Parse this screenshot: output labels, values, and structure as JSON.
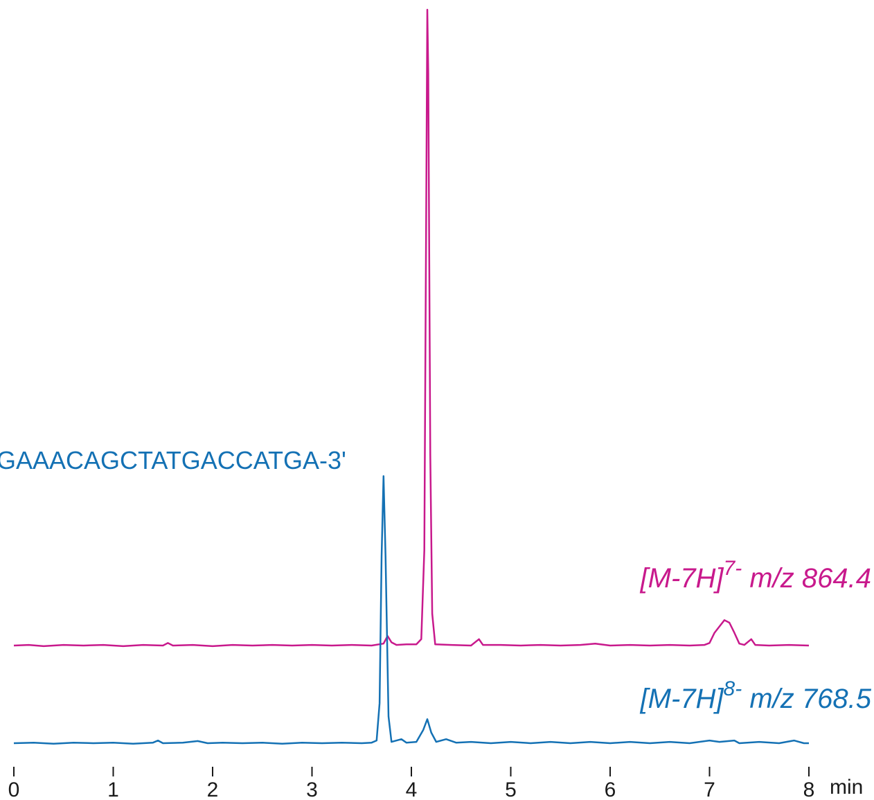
{
  "chart_data": {
    "type": "line",
    "title": "",
    "annotation": "GAAACAGCTATGACCATGA-3'",
    "xlabel": "min",
    "ylabel": "",
    "xlim": [
      0,
      8
    ],
    "x_ticks": [
      "0",
      "1",
      "2",
      "3",
      "4",
      "5",
      "6",
      "7",
      "8"
    ],
    "grid": false,
    "colors": {
      "magenta": "#c8198c",
      "blue": "#1471b4",
      "axis": "#1a1a1a"
    },
    "series": [
      {
        "name": "[M-7H]7- m/z 864.4",
        "label_main": "[M-7H]",
        "label_sup": "7-",
        "label_mz": " m/z 864.4",
        "color": "#c8198c",
        "relative_max": 1.0,
        "points": [
          [
            0.0,
            0.0
          ],
          [
            0.15,
            0.001
          ],
          [
            0.3,
            -0.001
          ],
          [
            0.5,
            0.001
          ],
          [
            0.7,
            0.0
          ],
          [
            0.9,
            0.001
          ],
          [
            1.1,
            -0.001
          ],
          [
            1.3,
            0.001
          ],
          [
            1.5,
            0.0
          ],
          [
            1.55,
            0.004
          ],
          [
            1.6,
            0.0
          ],
          [
            1.8,
            0.001
          ],
          [
            2.0,
            -0.001
          ],
          [
            2.2,
            0.001
          ],
          [
            2.4,
            0.0
          ],
          [
            2.6,
            0.001
          ],
          [
            2.8,
            0.0
          ],
          [
            3.0,
            0.001
          ],
          [
            3.2,
            0.0
          ],
          [
            3.4,
            0.001
          ],
          [
            3.6,
            0.0
          ],
          [
            3.72,
            0.003
          ],
          [
            3.76,
            0.015
          ],
          [
            3.8,
            0.005
          ],
          [
            3.85,
            0.001
          ],
          [
            3.95,
            0.002
          ],
          [
            4.05,
            0.002
          ],
          [
            4.1,
            0.01
          ],
          [
            4.13,
            0.15
          ],
          [
            4.15,
            0.7
          ],
          [
            4.16,
            1.0
          ],
          [
            4.17,
            0.9
          ],
          [
            4.19,
            0.3
          ],
          [
            4.21,
            0.05
          ],
          [
            4.24,
            0.002
          ],
          [
            4.4,
            0.001
          ],
          [
            4.6,
            0.0
          ],
          [
            4.68,
            0.01
          ],
          [
            4.72,
            0.001
          ],
          [
            4.9,
            0.001
          ],
          [
            5.1,
            0.0
          ],
          [
            5.3,
            0.001
          ],
          [
            5.5,
            0.0
          ],
          [
            5.7,
            0.001
          ],
          [
            5.85,
            0.003
          ],
          [
            6.0,
            0.0
          ],
          [
            6.2,
            0.001
          ],
          [
            6.4,
            0.0
          ],
          [
            6.6,
            0.001
          ],
          [
            6.8,
            0.0
          ],
          [
            6.95,
            0.001
          ],
          [
            7.0,
            0.004
          ],
          [
            7.05,
            0.02
          ],
          [
            7.1,
            0.03
          ],
          [
            7.15,
            0.04
          ],
          [
            7.2,
            0.036
          ],
          [
            7.25,
            0.02
          ],
          [
            7.3,
            0.003
          ],
          [
            7.35,
            0.001
          ],
          [
            7.42,
            0.01
          ],
          [
            7.46,
            0.001
          ],
          [
            7.6,
            0.0
          ],
          [
            7.8,
            0.001
          ],
          [
            8.0,
            0.0
          ]
        ]
      },
      {
        "name": "[M-7H]8- m/z 768.5",
        "label_main": "[M-7H]",
        "label_sup": "8-",
        "label_mz": " m/z 768.5",
        "color": "#1471b4",
        "relative_max": 0.42,
        "points": [
          [
            0.0,
            0.0
          ],
          [
            0.2,
            0.002
          ],
          [
            0.4,
            -0.002
          ],
          [
            0.6,
            0.002
          ],
          [
            0.8,
            0.0
          ],
          [
            1.0,
            0.002
          ],
          [
            1.2,
            -0.002
          ],
          [
            1.4,
            0.002
          ],
          [
            1.45,
            0.01
          ],
          [
            1.5,
            0.0
          ],
          [
            1.7,
            0.002
          ],
          [
            1.85,
            0.008
          ],
          [
            1.95,
            0.0
          ],
          [
            2.1,
            0.002
          ],
          [
            2.3,
            0.0
          ],
          [
            2.5,
            0.002
          ],
          [
            2.7,
            -0.002
          ],
          [
            2.9,
            0.002
          ],
          [
            3.1,
            0.0
          ],
          [
            3.3,
            0.002
          ],
          [
            3.5,
            0.0
          ],
          [
            3.6,
            0.002
          ],
          [
            3.65,
            0.01
          ],
          [
            3.68,
            0.15
          ],
          [
            3.7,
            0.7
          ],
          [
            3.72,
            1.0
          ],
          [
            3.74,
            0.7
          ],
          [
            3.77,
            0.1
          ],
          [
            3.8,
            0.005
          ],
          [
            3.9,
            0.015
          ],
          [
            3.95,
            0.002
          ],
          [
            4.05,
            0.005
          ],
          [
            4.12,
            0.05
          ],
          [
            4.16,
            0.09
          ],
          [
            4.2,
            0.04
          ],
          [
            4.25,
            0.005
          ],
          [
            4.35,
            0.015
          ],
          [
            4.45,
            0.002
          ],
          [
            4.6,
            0.005
          ],
          [
            4.8,
            0.0
          ],
          [
            5.0,
            0.005
          ],
          [
            5.2,
            0.0
          ],
          [
            5.4,
            0.005
          ],
          [
            5.6,
            0.0
          ],
          [
            5.8,
            0.005
          ],
          [
            6.0,
            0.0
          ],
          [
            6.2,
            0.005
          ],
          [
            6.4,
            0.0
          ],
          [
            6.6,
            0.005
          ],
          [
            6.8,
            0.0
          ],
          [
            7.0,
            0.01
          ],
          [
            7.1,
            0.005
          ],
          [
            7.25,
            0.01
          ],
          [
            7.3,
            0.0
          ],
          [
            7.5,
            0.005
          ],
          [
            7.7,
            0.0
          ],
          [
            7.85,
            0.01
          ],
          [
            7.95,
            0.0
          ],
          [
            8.0,
            0.0
          ]
        ]
      }
    ]
  }
}
